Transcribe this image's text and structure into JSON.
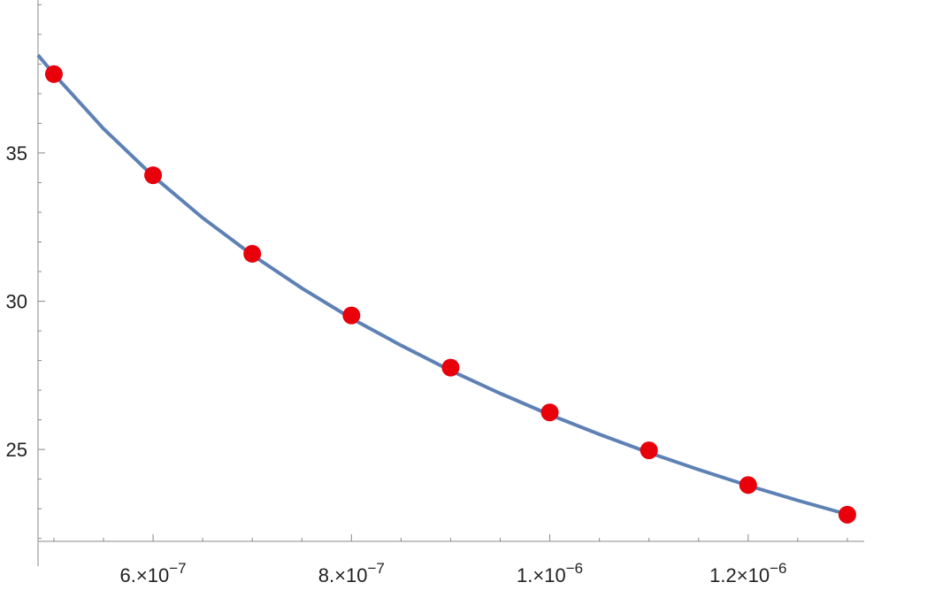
{
  "chart_data": {
    "type": "scatter",
    "x": [
      5e-07,
      6e-07,
      7e-07,
      8e-07,
      9e-07,
      1e-06,
      1.1e-06,
      1.2e-06,
      1.3e-06
    ],
    "series": [
      {
        "color": "#e8000b",
        "values": [
          37.66,
          34.25,
          31.6,
          29.52,
          27.76,
          26.25,
          24.97,
          23.8,
          22.8
        ]
      }
    ],
    "fit": {
      "color": "#5e81b5",
      "x": [
        4.84e-07,
        5e-07,
        5.5e-07,
        6e-07,
        6.5e-07,
        7e-07,
        7.5e-07,
        8e-07,
        8.5e-07,
        9e-07,
        9.5e-07,
        1e-06,
        1.05e-06,
        1.1e-06,
        1.15e-06,
        1.2e-06,
        1.25e-06,
        1.3e-06
      ],
      "values": [
        38.3,
        37.66,
        35.82,
        34.22,
        32.81,
        31.56,
        30.44,
        29.42,
        28.51,
        27.66,
        26.89,
        26.17,
        25.51,
        24.89,
        24.32,
        23.78,
        23.28,
        22.81
      ]
    },
    "xlim": [
      4.84e-07,
      1.317e-06
    ],
    "ylim": [
      21.9,
      40.16
    ],
    "xticks": [
      {
        "value": 6e-07,
        "label": "6.×10",
        "exponent": "−7"
      },
      {
        "value": 8e-07,
        "label": "8.×10",
        "exponent": "−7"
      },
      {
        "value": 1e-06,
        "label": "1.×10",
        "exponent": "−6"
      },
      {
        "value": 1.2e-06,
        "label": "1.2×10",
        "exponent": "−6"
      }
    ],
    "xminor": [
      5e-07,
      5.5e-07,
      6.5e-07,
      7e-07,
      7.5e-07,
      8.5e-07,
      9e-07,
      9.5e-07,
      1.05e-06,
      1.1e-06,
      1.15e-06,
      1.25e-06,
      1.3e-06
    ],
    "yticks": [
      25,
      30,
      35
    ],
    "yminor": [
      22,
      23,
      24,
      26,
      27,
      28,
      29,
      31,
      32,
      33,
      34,
      36,
      37,
      38,
      39,
      40
    ]
  }
}
